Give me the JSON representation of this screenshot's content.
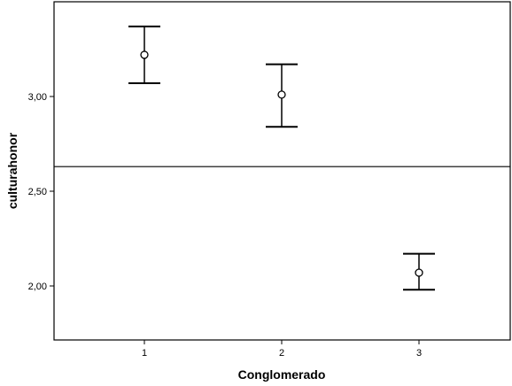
{
  "chart_data": {
    "type": "errorbar",
    "xlabel": "Conglomerado",
    "ylabel": "culturahonor",
    "categories": [
      "1",
      "2",
      "3"
    ],
    "means": [
      3.22,
      3.01,
      2.07
    ],
    "lower": [
      3.07,
      2.84,
      1.98
    ],
    "upper": [
      3.37,
      3.17,
      2.17
    ],
    "y_ticks": [
      {
        "value": 2.0,
        "label": "2,00"
      },
      {
        "value": 2.5,
        "label": "2,50"
      },
      {
        "value": 3.0,
        "label": "3,00"
      }
    ],
    "reference_line": 2.63,
    "ylim": [
      1.85,
      3.5
    ],
    "grid": false
  }
}
